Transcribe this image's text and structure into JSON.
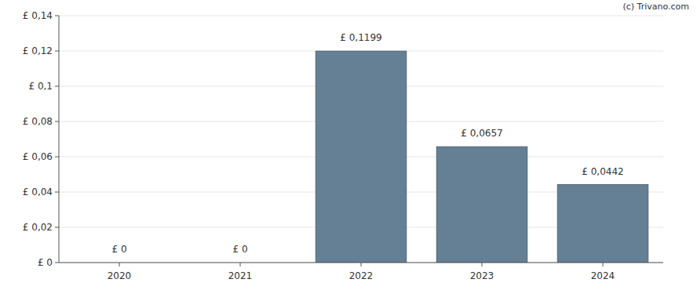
{
  "chart_data": {
    "type": "bar",
    "categories": [
      "2020",
      "2021",
      "2022",
      "2023",
      "2024"
    ],
    "values": [
      0,
      0,
      0.1199,
      0.0657,
      0.0442
    ],
    "value_labels": [
      "£ 0",
      "£ 0",
      "£ 0,1199",
      "£ 0,0657",
      "£ 0,0442"
    ],
    "data_labels": true,
    "color": "#657f94",
    "ylim": [
      0,
      0.14
    ],
    "yticks": [
      {
        "value": 0,
        "label": "£ 0"
      },
      {
        "value": 0.02,
        "label": "£ 0,02"
      },
      {
        "value": 0.04,
        "label": "£ 0,04"
      },
      {
        "value": 0.06,
        "label": "£ 0,06"
      },
      {
        "value": 0.08,
        "label": "£ 0,08"
      },
      {
        "value": 0.1,
        "label": "£ 0,1"
      },
      {
        "value": 0.12,
        "label": "£ 0,12"
      },
      {
        "value": 0.14,
        "label": "£ 0,14"
      }
    ],
    "grid": true,
    "annotations": [
      "(c) Trivano.com"
    ]
  }
}
